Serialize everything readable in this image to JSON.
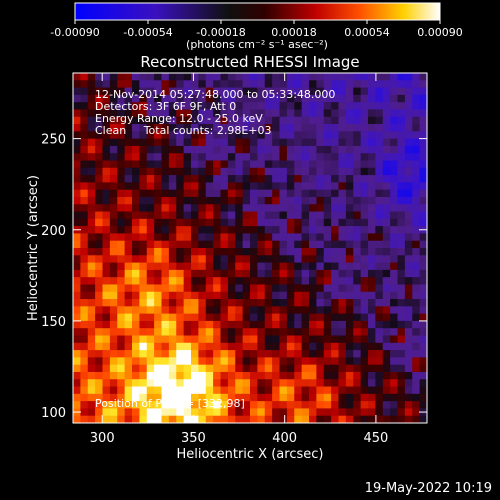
{
  "colorbar": {
    "ticks": [
      "-0.00090",
      "-0.00054",
      "-0.00018",
      "0.00018",
      "0.00054",
      "0.00090"
    ],
    "unit_label": "(photons cm⁻² s⁻¹ asec⁻²)",
    "colors": [
      "#0000ff",
      "#4000a0",
      "#000000",
      "#900000",
      "#ff2000",
      "#ff9000",
      "#ffff00",
      "#ffffff"
    ]
  },
  "chart_data": {
    "type": "heatmap",
    "title": "Reconstructed RHESSI Image",
    "xlabel": "Heliocentric X (arcsec)",
    "ylabel": "Heliocentric Y (arcsec)",
    "xlim": [
      284,
      478
    ],
    "ylim": [
      94,
      286
    ],
    "x_ticks": [
      300,
      350,
      400,
      450
    ],
    "y_ticks": [
      100,
      150,
      200,
      250
    ],
    "info_lines": [
      "12-Nov-2014 05:27:48.000 to 05:33:48.000",
      "Detectors: 3F 6F 9F, Att 0",
      "Energy Range: 12.0 - 25.0 keV",
      "Clean     Total counts: 2.98E+03"
    ],
    "peak_text": "Position of Peak = [332,98]",
    "peak": [
      332,
      98
    ],
    "grid": false
  },
  "date_stamp": "19-May-2022 10:19"
}
